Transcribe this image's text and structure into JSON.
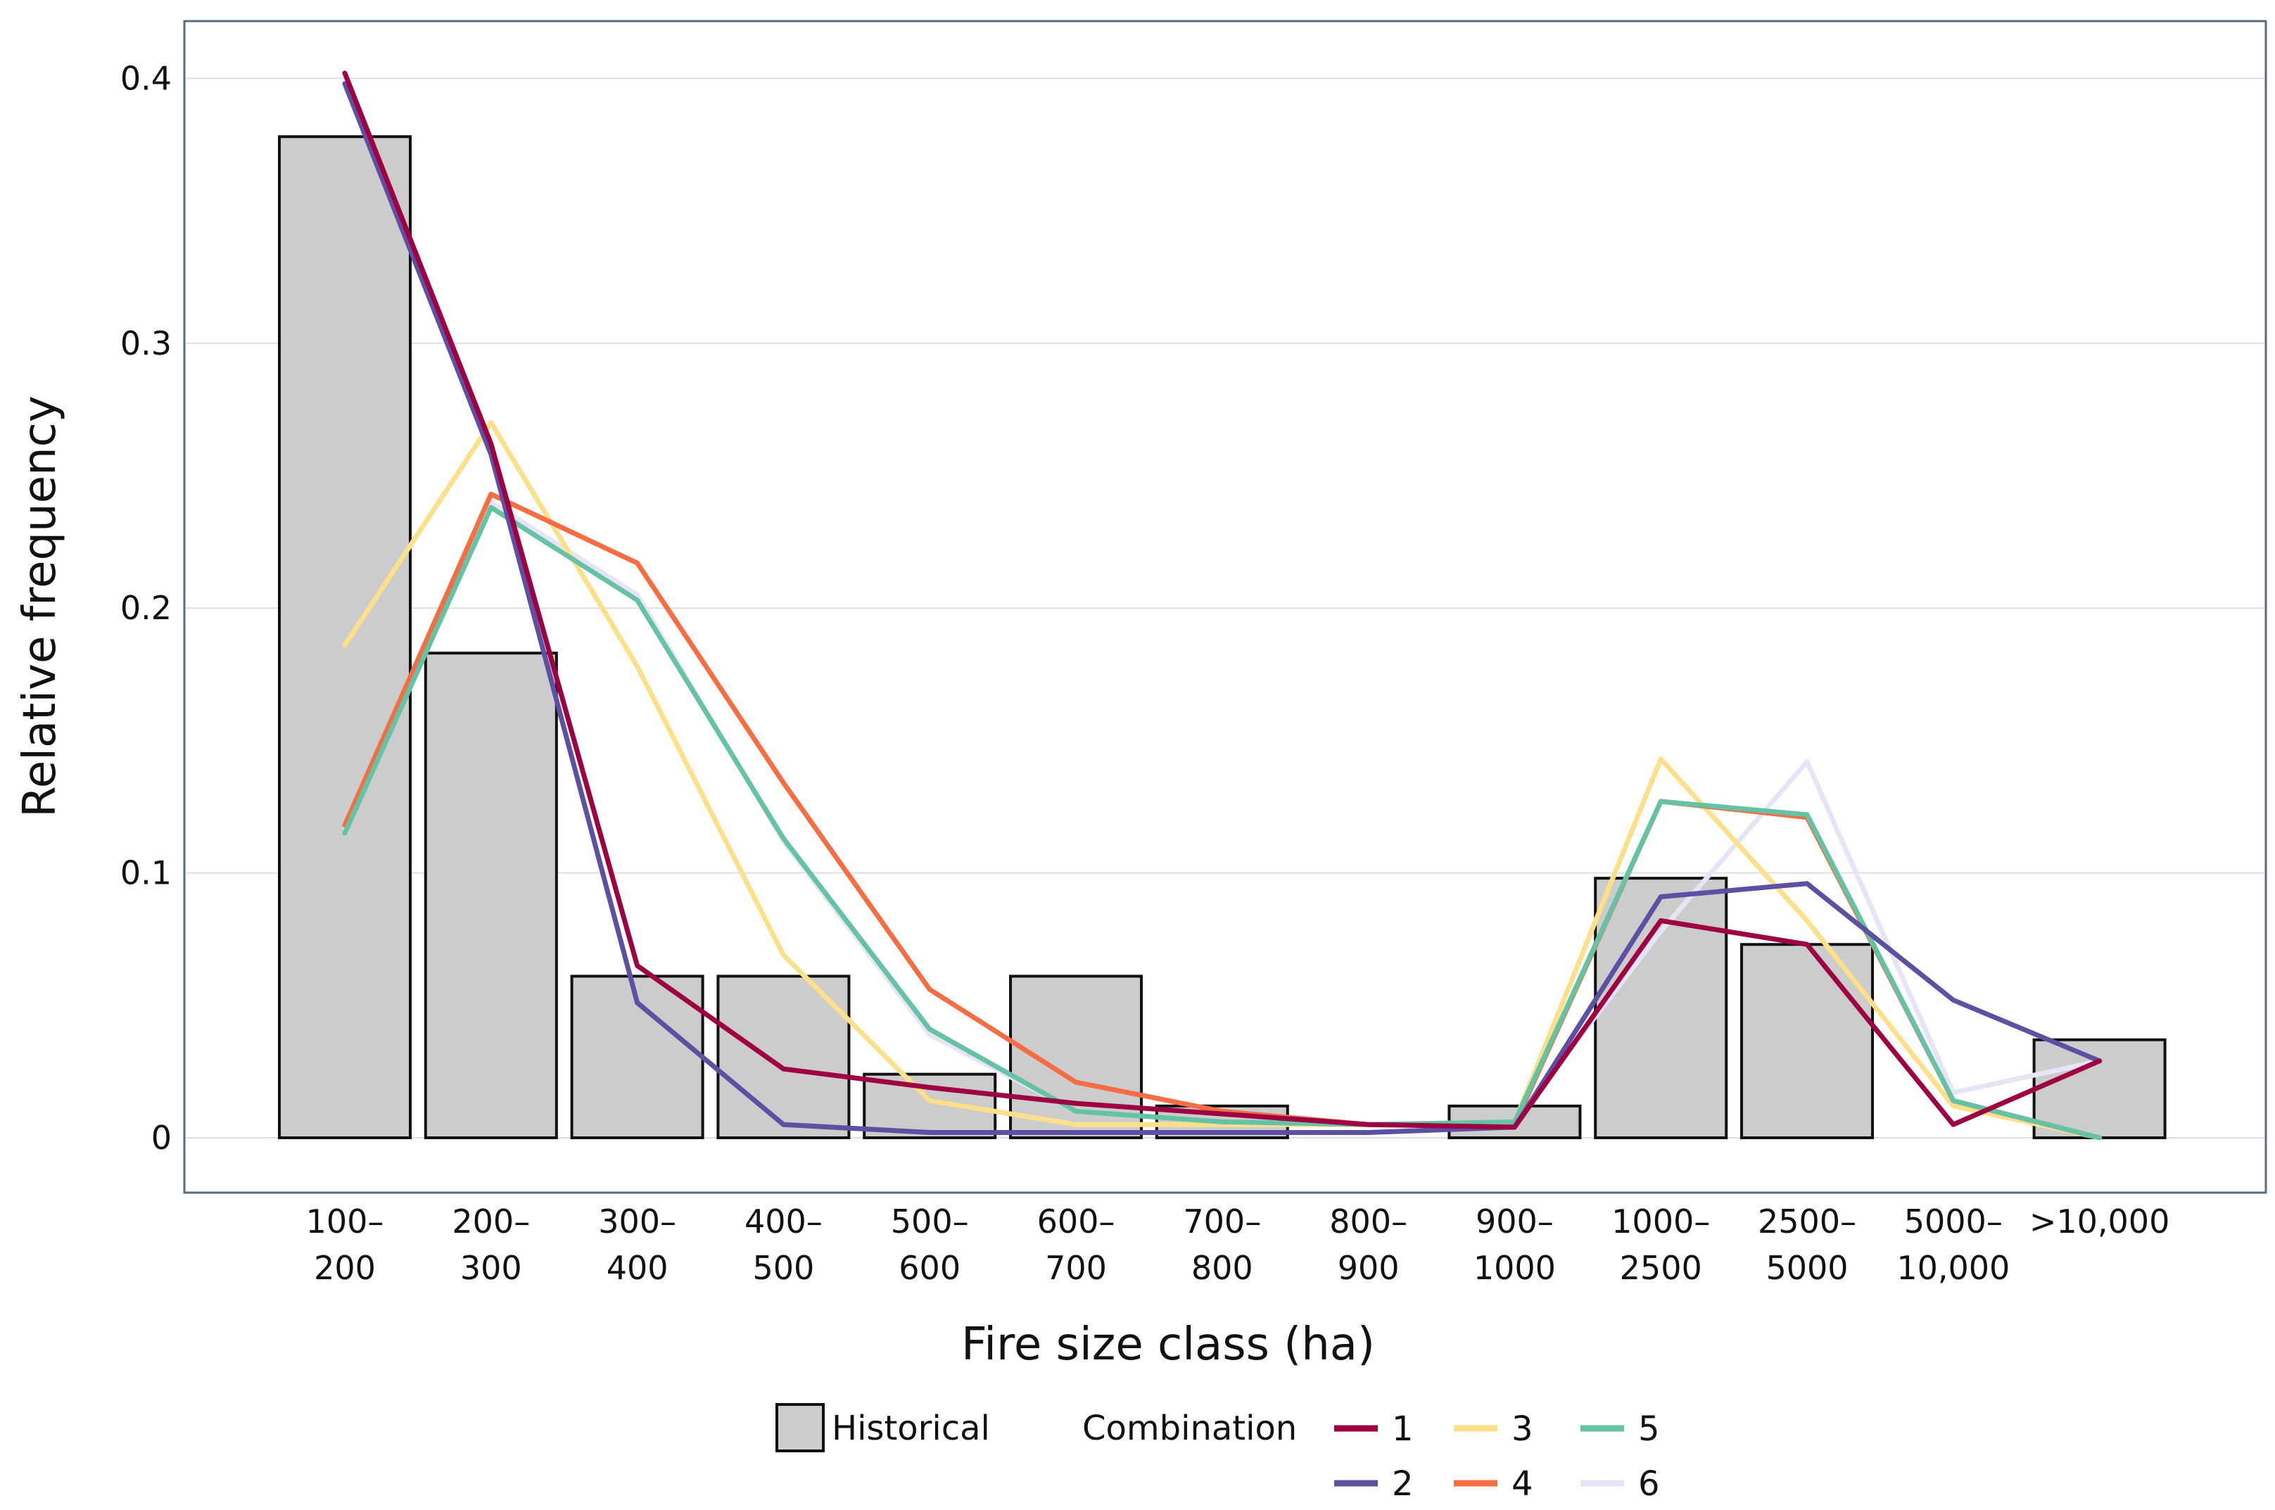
{
  "chart_data": {
    "type": "bar",
    "xlabel": "Fire size class (ha)",
    "ylabel": "Relative frequency",
    "ylim": [
      0,
      0.42
    ],
    "yticks": [
      0,
      0.1,
      0.2,
      0.3,
      0.4
    ],
    "ytick_labels": [
      "0",
      "0.1",
      "0.2",
      "0.3",
      "0.4"
    ],
    "grid": true,
    "categories": [
      [
        "100–",
        "200"
      ],
      [
        "200–",
        "300"
      ],
      [
        "300–",
        "400"
      ],
      [
        "400–",
        "500"
      ],
      [
        "500–",
        "600"
      ],
      [
        "600–",
        "700"
      ],
      [
        "700–",
        "800"
      ],
      [
        "800–",
        "900"
      ],
      [
        "900–",
        "1000"
      ],
      [
        "1000–",
        "2500"
      ],
      [
        "2500–",
        "5000"
      ],
      [
        "5000–",
        "10,000"
      ],
      [
        ">10,000"
      ]
    ],
    "bars": {
      "name": "Historical",
      "color": "#cccccc",
      "values": [
        0.378,
        0.183,
        0.061,
        0.061,
        0.024,
        0.061,
        0.012,
        0.0,
        0.012,
        0.098,
        0.073,
        0.0,
        0.037
      ]
    },
    "legend_group_title": "Combination",
    "legend_position": "bottom",
    "series": [
      {
        "name": "1",
        "color": "#9e0142",
        "values": [
          0.402,
          0.262,
          0.065,
          0.026,
          0.019,
          0.013,
          0.009,
          0.005,
          0.004,
          0.082,
          0.073,
          0.005,
          0.029
        ]
      },
      {
        "name": "2",
        "color": "#5e4fa2",
        "values": [
          0.398,
          0.258,
          0.051,
          0.005,
          0.002,
          0.002,
          0.002,
          0.002,
          0.004,
          0.091,
          0.096,
          0.052,
          0.029
        ]
      },
      {
        "name": "3",
        "color": "#fee08b",
        "values": [
          0.186,
          0.27,
          0.178,
          0.069,
          0.014,
          0.005,
          0.005,
          0.005,
          0.006,
          0.143,
          0.082,
          0.012,
          0.0
        ]
      },
      {
        "name": "4",
        "color": "#f46d43",
        "values": [
          0.118,
          0.243,
          0.217,
          0.134,
          0.056,
          0.021,
          0.01,
          0.005,
          0.005,
          0.127,
          0.121,
          0.014,
          0.0
        ]
      },
      {
        "name": "5",
        "color": "#66c2a5",
        "values": [
          0.115,
          0.238,
          0.203,
          0.113,
          0.041,
          0.01,
          0.006,
          0.005,
          0.006,
          0.127,
          0.122,
          0.014,
          0.0
        ]
      },
      {
        "name": "6",
        "color": "#e6e4f7",
        "values": [
          0.117,
          0.24,
          0.205,
          0.112,
          0.039,
          0.01,
          0.006,
          0.005,
          0.006,
          0.078,
          0.142,
          0.017,
          0.029
        ]
      }
    ]
  }
}
